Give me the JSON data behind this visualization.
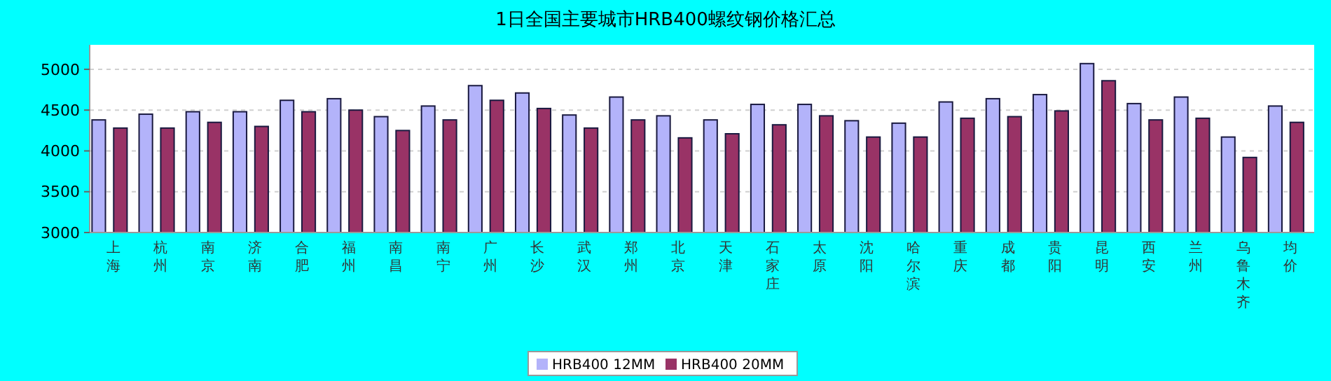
{
  "chart_data": {
    "type": "bar",
    "title": "1日全国主要城市HRB400螺纹钢价格汇总",
    "categories": [
      "上海",
      "杭州",
      "南京",
      "济南",
      "合肥",
      "福州",
      "南昌",
      "南宁",
      "广州",
      "长沙",
      "武汉",
      "郑州",
      "北京",
      "天津",
      "石家庄",
      "太原",
      "沈阳",
      "哈尔滨",
      "重庆",
      "成都",
      "贵阳",
      "昆明",
      "西安",
      "兰州",
      "乌鲁木齐",
      "均价"
    ],
    "series": [
      {
        "name": "HRB400 12MM",
        "color": "#b3b3fa",
        "values": [
          4380,
          4450,
          4480,
          4480,
          4620,
          4640,
          4420,
          4550,
          4800,
          4710,
          4440,
          4660,
          4430,
          4380,
          4570,
          4570,
          4370,
          4340,
          4600,
          4640,
          4690,
          5070,
          4580,
          4660,
          4170,
          4550
        ]
      },
      {
        "name": "HRB400 20MM",
        "color": "#993366",
        "values": [
          4280,
          4280,
          4350,
          4300,
          4480,
          4500,
          4250,
          4380,
          4620,
          4520,
          4280,
          4380,
          4160,
          4210,
          4320,
          4430,
          4170,
          4170,
          4400,
          4420,
          4490,
          4860,
          4380,
          4400,
          3920,
          4350
        ]
      }
    ],
    "ylim": [
      3000,
      5300
    ],
    "yticks": [
      3000,
      3500,
      4000,
      4500,
      5000
    ],
    "grid": "y",
    "legend": "bottom"
  }
}
